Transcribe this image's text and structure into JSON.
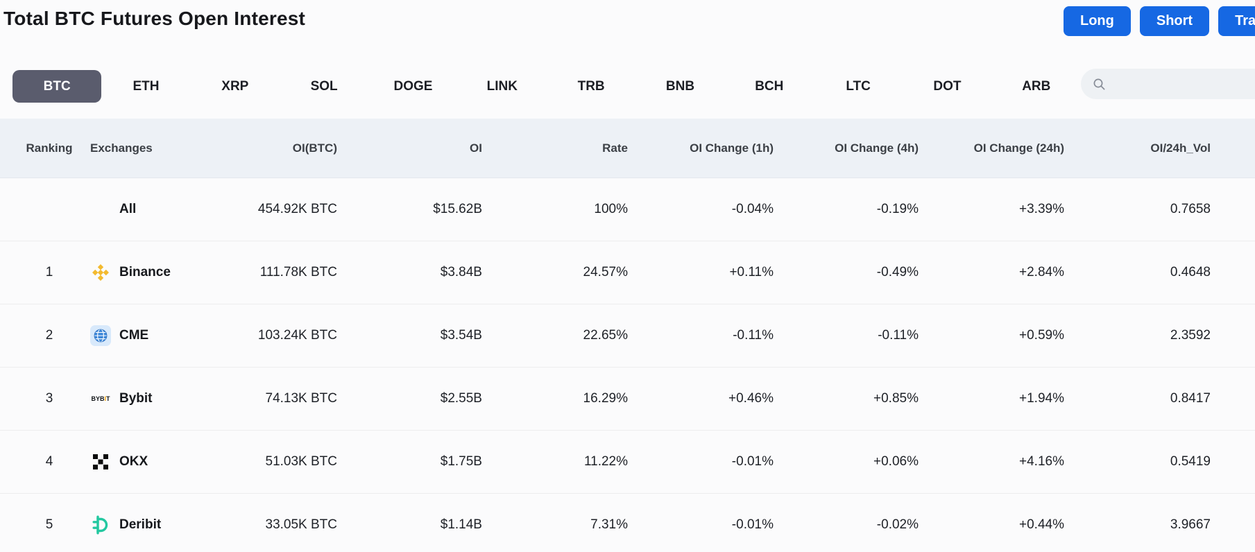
{
  "page": {
    "title": "Total BTC Futures Open Interest"
  },
  "actions": [
    {
      "label": "Long"
    },
    {
      "label": "Short"
    },
    {
      "label": "Trade"
    }
  ],
  "tabs": {
    "active": "BTC",
    "items": [
      "BTC",
      "ETH",
      "XRP",
      "SOL",
      "DOGE",
      "LINK",
      "TRB",
      "BNB",
      "BCH",
      "LTC",
      "DOT",
      "ARB"
    ]
  },
  "search": {
    "placeholder": "",
    "icon": "search-icon"
  },
  "table": {
    "headers": [
      {
        "key": "ranking",
        "label": "Ranking"
      },
      {
        "key": "exchange",
        "label": "Exchanges"
      },
      {
        "key": "oi_btc",
        "label": "OI(BTC)"
      },
      {
        "key": "oi",
        "label": "OI"
      },
      {
        "key": "rate",
        "label": "Rate"
      },
      {
        "key": "change_1h",
        "label": "OI Change (1h)"
      },
      {
        "key": "change_4h",
        "label": "OI Change (4h)"
      },
      {
        "key": "change_24h",
        "label": "OI Change (24h)"
      },
      {
        "key": "oi_24h_vol",
        "label": "OI/24h_Vol"
      }
    ],
    "rows": [
      {
        "ranking": "",
        "exchange": "All",
        "logo": "",
        "oi_btc": "454.92K BTC",
        "oi": "$15.62B",
        "rate": "100%",
        "change_1h": "-0.04%",
        "change_4h": "-0.19%",
        "change_24h": "+3.39%",
        "oi_24h_vol": "0.7658"
      },
      {
        "ranking": "1",
        "exchange": "Binance",
        "logo": "binance",
        "oi_btc": "111.78K BTC",
        "oi": "$3.84B",
        "rate": "24.57%",
        "change_1h": "+0.11%",
        "change_4h": "-0.49%",
        "change_24h": "+2.84%",
        "oi_24h_vol": "0.4648"
      },
      {
        "ranking": "2",
        "exchange": "CME",
        "logo": "cme",
        "oi_btc": "103.24K BTC",
        "oi": "$3.54B",
        "rate": "22.65%",
        "change_1h": "-0.11%",
        "change_4h": "-0.11%",
        "change_24h": "+0.59%",
        "oi_24h_vol": "2.3592"
      },
      {
        "ranking": "3",
        "exchange": "Bybit",
        "logo": "bybit",
        "oi_btc": "74.13K BTC",
        "oi": "$2.55B",
        "rate": "16.29%",
        "change_1h": "+0.46%",
        "change_4h": "+0.85%",
        "change_24h": "+1.94%",
        "oi_24h_vol": "0.8417"
      },
      {
        "ranking": "4",
        "exchange": "OKX",
        "logo": "okx",
        "oi_btc": "51.03K BTC",
        "oi": "$1.75B",
        "rate": "11.22%",
        "change_1h": "-0.01%",
        "change_4h": "+0.06%",
        "change_24h": "+4.16%",
        "oi_24h_vol": "0.5419"
      },
      {
        "ranking": "5",
        "exchange": "Deribit",
        "logo": "deribit",
        "oi_btc": "33.05K BTC",
        "oi": "$1.14B",
        "rate": "7.31%",
        "change_1h": "-0.01%",
        "change_4h": "-0.02%",
        "change_24h": "+0.44%",
        "oi_24h_vol": "3.9667"
      }
    ]
  },
  "colors": {
    "accent_blue": "#1668e3",
    "positive": "#1aa689",
    "negative": "#e6475c",
    "active_tab_bg": "#5a5c6d",
    "binance_yellow": "#f3ba2f",
    "cme_blue": "#3b86d8",
    "bybit_orange": "#f7a600",
    "okx_black": "#0b0b0b",
    "deribit_teal": "#23c8a0"
  }
}
